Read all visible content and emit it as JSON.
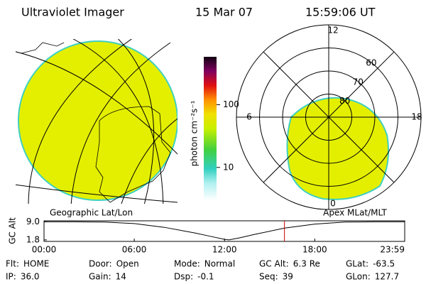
{
  "header": {
    "title": "Ultraviolet Imager",
    "date": "15 Mar 07",
    "time": "15:59:06 UT"
  },
  "left_panel": {
    "label": "Geographic Lat/Lon"
  },
  "colorbar": {
    "label": "photon cm⁻²s⁻¹",
    "log": true,
    "ylim": [
      3,
      580
    ],
    "ticks": [
      10,
      100
    ]
  },
  "right_panel": {
    "label": "Apex MLat/MLT",
    "mlt_ticks": [
      {
        "value": 12,
        "label": "12"
      },
      {
        "value": 18,
        "label": "18"
      },
      {
        "value": 6,
        "label": "6"
      },
      {
        "value": 0,
        "label": "0"
      }
    ],
    "lat_ticks": [
      60,
      70,
      80
    ]
  },
  "plot": {
    "ylabel": "GC Alt",
    "yticks": [
      {
        "value": 9.0,
        "label": "9.0"
      },
      {
        "value": 1.8,
        "label": "1.8"
      }
    ],
    "ylim": [
      1.2,
      9.4
    ],
    "xlim": [
      0,
      23.98
    ],
    "xticks": [
      {
        "value": 0,
        "label": "00:00"
      },
      {
        "value": 6,
        "label": "06:00"
      },
      {
        "value": 12,
        "label": "12:00"
      },
      {
        "value": 18,
        "label": "18:00"
      },
      {
        "value": 23.98,
        "label": "23:59"
      }
    ],
    "x": [
      0,
      2,
      4,
      6,
      8,
      10,
      11,
      12,
      12.3,
      13,
      14,
      16,
      18,
      20,
      22,
      23.98
    ],
    "y": [
      9.0,
      9.0,
      8.9,
      8.3,
      6.8,
      4.6,
      3.3,
      2.0,
      1.8,
      2.6,
      4.0,
      6.5,
      8.1,
      8.9,
      9.0,
      9.0
    ],
    "marker_x": 15.985,
    "marker_color": "#cc0000"
  },
  "status": [
    [
      {
        "label": "Flt:",
        "value": "HOME"
      },
      {
        "label": "Door:",
        "value": "Open"
      },
      {
        "label": "Mode:",
        "value": "Normal"
      },
      {
        "label": "GC Alt:",
        "value": "6.3 Re"
      },
      {
        "label": "GLat:",
        "value": "-63.5"
      }
    ],
    [
      {
        "label": "IP:",
        "value": "36.0"
      },
      {
        "label": "Gain:",
        "value": "14"
      },
      {
        "label": "Dsp:",
        "value": "-0.1"
      },
      {
        "label": "Seq:",
        "value": "39"
      },
      {
        "label": "GLon:",
        "value": "127.7"
      }
    ]
  ]
}
